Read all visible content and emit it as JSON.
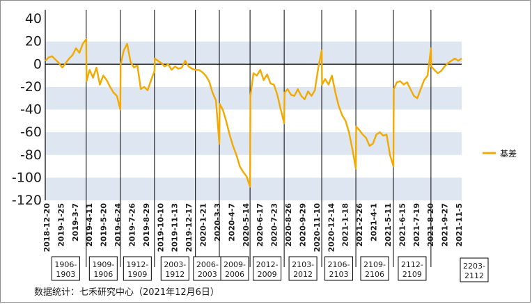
{
  "chart_data": {
    "type": "line",
    "ylim": [
      -120,
      40
    ],
    "y_ticks": [
      40,
      20,
      0,
      -20,
      -40,
      -60,
      -80,
      -100,
      -120
    ],
    "x_tick_labels": [
      "2018-12-20",
      "2019-1-25",
      "2019-3-7",
      "2019-4-11",
      "2019-5-20",
      "2019-6-24",
      "2019-7-26",
      "2019-8-29",
      "2019-10-10",
      "2019-11-13",
      "2019-12-17",
      "2020-1-21",
      "2020-3-3",
      "2020-4-7",
      "2020-5-14",
      "2020-6-17",
      "2020-7-23",
      "2020-8-26",
      "2020-9-29",
      "2020-11-10",
      "2020-12-14",
      "2021-1-18",
      "2021-2-26",
      "2021-4-1",
      "2021-5-11",
      "2021-6-15",
      "2021-7-19",
      "2021-8-20",
      "2021-9-27",
      "2021-11-5"
    ],
    "grid": "alternating horizontal bands",
    "legend": {
      "position": "right",
      "entries": [
        "基差"
      ]
    },
    "contract_periods": [
      {
        "line1": "1906-",
        "line2": "1903"
      },
      {
        "line1": "1909-",
        "line2": "1906"
      },
      {
        "line1": "1912-",
        "line2": "1909"
      },
      {
        "line1": "2003-",
        "line2": "1912"
      },
      {
        "line1": "2006-",
        "line2": "2003"
      },
      {
        "line1": "2009-",
        "line2": "2006"
      },
      {
        "line1": "2012-",
        "line2": "2009"
      },
      {
        "line1": "2103-",
        "line2": "2012"
      },
      {
        "line1": "2106-",
        "line2": "2103"
      },
      {
        "line1": "2109-",
        "line2": "2106"
      },
      {
        "line1": "2112-",
        "line2": "2109"
      },
      {
        "line1": "2203-",
        "line2": "2112"
      }
    ],
    "series": [
      {
        "name": "基差",
        "color": "#f2a900",
        "points": [
          [
            0,
            3
          ],
          [
            0.5,
            6
          ],
          [
            1,
            7
          ],
          [
            1.5,
            4
          ],
          [
            2,
            1
          ],
          [
            2.5,
            -3
          ],
          [
            3,
            1
          ],
          [
            3.5,
            5
          ],
          [
            4,
            8
          ],
          [
            4.5,
            14
          ],
          [
            5,
            10
          ],
          [
            5.5,
            18
          ],
          [
            6,
            22
          ],
          [
            6.05,
            -15
          ],
          [
            6.5,
            -5
          ],
          [
            7,
            -12
          ],
          [
            7.5,
            -3
          ],
          [
            8,
            -18
          ],
          [
            8.5,
            -10
          ],
          [
            9,
            -14
          ],
          [
            9.5,
            -20
          ],
          [
            10,
            -25
          ],
          [
            10.5,
            -28
          ],
          [
            11,
            -40
          ],
          [
            11.05,
            0
          ],
          [
            11.5,
            12
          ],
          [
            12,
            18
          ],
          [
            12.5,
            2
          ],
          [
            13,
            -3
          ],
          [
            13.5,
            -1
          ],
          [
            14,
            -22
          ],
          [
            14.5,
            -20
          ],
          [
            15,
            -23
          ],
          [
            15.5,
            -14
          ],
          [
            16,
            -6
          ],
          [
            16.05,
            5
          ],
          [
            16.5,
            3
          ],
          [
            17,
            1
          ],
          [
            17.5,
            -2
          ],
          [
            18,
            0
          ],
          [
            18.5,
            -5
          ],
          [
            19,
            -2
          ],
          [
            19.5,
            -4
          ],
          [
            20,
            -3
          ],
          [
            20.5,
            3
          ],
          [
            21,
            -2
          ],
          [
            21.5,
            -4
          ],
          [
            22,
            -5
          ],
          [
            22.05,
            -5
          ],
          [
            22.5,
            -5
          ],
          [
            23,
            -7
          ],
          [
            23.5,
            -10
          ],
          [
            24,
            -15
          ],
          [
            24.5,
            -25
          ],
          [
            25,
            -32
          ],
          [
            25.5,
            -70
          ],
          [
            25.55,
            -35
          ],
          [
            26,
            -40
          ],
          [
            26.5,
            -50
          ],
          [
            27,
            -62
          ],
          [
            27.5,
            -72
          ],
          [
            28,
            -80
          ],
          [
            28.5,
            -90
          ],
          [
            29,
            -95
          ],
          [
            29.5,
            -99
          ],
          [
            30,
            -108
          ],
          [
            30.05,
            -28
          ],
          [
            30.5,
            -8
          ],
          [
            31,
            -10
          ],
          [
            31.5,
            -5
          ],
          [
            32,
            -14
          ],
          [
            32.5,
            -9
          ],
          [
            33,
            -17
          ],
          [
            33.5,
            -18
          ],
          [
            34,
            -27
          ],
          [
            34.5,
            -40
          ],
          [
            35,
            -52
          ],
          [
            35.05,
            -25
          ],
          [
            35.5,
            -22
          ],
          [
            36,
            -27
          ],
          [
            36.5,
            -28
          ],
          [
            37,
            -22
          ],
          [
            37.5,
            -28
          ],
          [
            38,
            -31
          ],
          [
            38.5,
            -24
          ],
          [
            39,
            -28
          ],
          [
            39.5,
            -23
          ],
          [
            40,
            -3
          ],
          [
            40.5,
            12
          ],
          [
            40.55,
            -18
          ],
          [
            41,
            -13
          ],
          [
            41.5,
            -18
          ],
          [
            42,
            -10
          ],
          [
            42.5,
            -25
          ],
          [
            43,
            -37
          ],
          [
            43.5,
            -45
          ],
          [
            44,
            -50
          ],
          [
            44.5,
            -60
          ],
          [
            45,
            -75
          ],
          [
            45.5,
            -92
          ],
          [
            45.55,
            -55
          ],
          [
            46,
            -58
          ],
          [
            46.5,
            -62
          ],
          [
            47,
            -65
          ],
          [
            47.5,
            -72
          ],
          [
            48,
            -70
          ],
          [
            48.5,
            -62
          ],
          [
            49,
            -60
          ],
          [
            49.5,
            -63
          ],
          [
            50,
            -62
          ],
          [
            50.5,
            -80
          ],
          [
            51,
            -90
          ],
          [
            51.05,
            -22
          ],
          [
            51.5,
            -16
          ],
          [
            52,
            -15
          ],
          [
            52.5,
            -18
          ],
          [
            53,
            -16
          ],
          [
            53.5,
            -22
          ],
          [
            54,
            -28
          ],
          [
            54.5,
            -30
          ],
          [
            55,
            -22
          ],
          [
            55.5,
            -14
          ],
          [
            56,
            -10
          ],
          [
            56.5,
            14
          ],
          [
            56.55,
            -2
          ],
          [
            57,
            -5
          ],
          [
            57.5,
            -8
          ],
          [
            58,
            -6
          ],
          [
            58.5,
            -2
          ],
          [
            59,
            1
          ],
          [
            59.5,
            3
          ],
          [
            60,
            5
          ],
          [
            60.5,
            3
          ],
          [
            61,
            5
          ]
        ]
      }
    ]
  },
  "source_note": "数据统计：七禾研究中心（2021年12月6日）"
}
